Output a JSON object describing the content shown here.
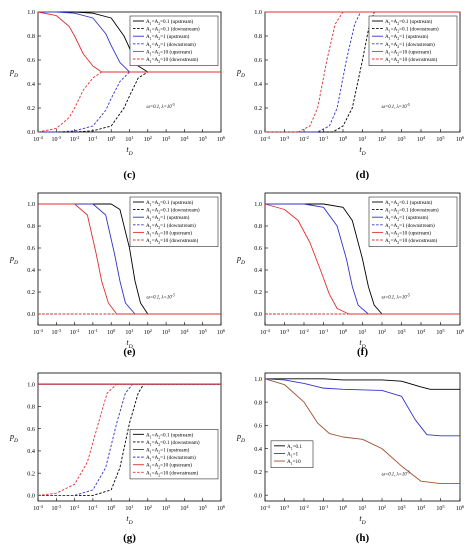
{
  "figure": {
    "panel_labels": [
      "(c)",
      "(d)",
      "(e)",
      "(f)",
      "(g)",
      "(h)"
    ]
  },
  "chart_data": [
    {
      "panel": "(c)",
      "type": "line",
      "xscale": "log",
      "x_tick_exponents": [
        -4,
        -3,
        -2,
        -1,
        0,
        1,
        2,
        3,
        4,
        5,
        6
      ],
      "xlim": [
        0.0001,
        1000000
      ],
      "ylim": [
        0,
        1
      ],
      "yticks": [
        "0.0",
        "0.2",
        "0.4",
        "0.6",
        "0.8",
        "1.0"
      ],
      "xlabel": "t_D",
      "ylabel": "p_D",
      "annotation": "ω=0.1  λ=10^-5",
      "legend_position": "top-right",
      "series": [
        {
          "name": "A1=A2=0.1 (upstream)",
          "color": "#000000",
          "dash": "solid",
          "x": [
            0.0001,
            0.01,
            0.1,
            1,
            5,
            10,
            30,
            100,
            1000000
          ],
          "y": [
            1,
            1,
            0.99,
            0.95,
            0.8,
            0.7,
            0.55,
            0.5,
            0.5
          ]
        },
        {
          "name": "A1=A2=0.1 (downstream)",
          "color": "#000000",
          "dash": "dash",
          "x": [
            0.0001,
            0.01,
            0.1,
            1,
            5,
            10,
            30,
            100,
            1000000
          ],
          "y": [
            0,
            0,
            0.01,
            0.05,
            0.2,
            0.3,
            0.45,
            0.5,
            0.5
          ]
        },
        {
          "name": "A1=A2=1 (upstream)",
          "color": "#3333cc",
          "dash": "solid",
          "x": [
            0.0001,
            0.001,
            0.01,
            0.1,
            0.5,
            1,
            3,
            10,
            1000000
          ],
          "y": [
            1,
            1,
            0.99,
            0.95,
            0.82,
            0.72,
            0.58,
            0.5,
            0.5
          ]
        },
        {
          "name": "A1=A2=1 (downstream)",
          "color": "#3333cc",
          "dash": "dash",
          "x": [
            0.0001,
            0.001,
            0.01,
            0.1,
            0.5,
            1,
            3,
            10,
            1000000
          ],
          "y": [
            0,
            0,
            0.01,
            0.05,
            0.18,
            0.28,
            0.42,
            0.5,
            0.5
          ]
        },
        {
          "name": "A1=A2=10 (upstream)",
          "color": "#e03030",
          "dash": "solid",
          "x": [
            0.0001,
            0.001,
            0.005,
            0.01,
            0.03,
            0.1,
            0.3,
            1000000
          ],
          "y": [
            1,
            0.97,
            0.88,
            0.8,
            0.65,
            0.55,
            0.5,
            0.5
          ]
        },
        {
          "name": "A1=A2=10 (downstream)",
          "color": "#e03030",
          "dash": "dash",
          "x": [
            0.0001,
            0.001,
            0.005,
            0.01,
            0.03,
            0.1,
            0.3,
            1000000
          ],
          "y": [
            0,
            0.03,
            0.12,
            0.2,
            0.35,
            0.45,
            0.5,
            0.5
          ]
        }
      ]
    },
    {
      "panel": "(d)",
      "type": "line",
      "xscale": "log",
      "x_tick_exponents": [
        -4,
        -3,
        -2,
        -1,
        0,
        1,
        2,
        3,
        4,
        5,
        6
      ],
      "xlim": [
        0.0001,
        1000000
      ],
      "ylim": [
        0,
        1
      ],
      "yticks": [
        "0.0",
        "0.2",
        "0.4",
        "0.6",
        "0.8",
        "1.0"
      ],
      "xlabel": "t_D",
      "ylabel": "p_D",
      "annotation": "ω=0.1  λ=10^-5",
      "legend_position": "top-right",
      "series": [
        {
          "name": "A1=A2=0.1 (upstream)",
          "color": "#000000",
          "dash": "solid",
          "x": [
            0.0001,
            1000000
          ],
          "y": [
            1,
            1
          ]
        },
        {
          "name": "A1=A2=0.1 (downstream)",
          "color": "#000000",
          "dash": "dash",
          "x": [
            0.0001,
            0.3,
            1,
            3,
            10,
            20,
            40,
            1000000
          ],
          "y": [
            0,
            0,
            0.05,
            0.2,
            0.6,
            0.85,
            1,
            1
          ]
        },
        {
          "name": "A1=A2=1 (upstream)",
          "color": "#3333cc",
          "dash": "solid",
          "x": [
            0.0001,
            1000000
          ],
          "y": [
            1,
            1
          ]
        },
        {
          "name": "A1=A2=1 (downstream)",
          "color": "#3333cc",
          "dash": "dash",
          "x": [
            0.0001,
            0.05,
            0.2,
            0.5,
            1.5,
            4,
            8,
            1000000
          ],
          "y": [
            0,
            0,
            0.05,
            0.2,
            0.6,
            0.9,
            1,
            1
          ]
        },
        {
          "name": "A1=A2=10 (upstream)",
          "color": "#e03030",
          "dash": "solid",
          "x": [
            0.0001,
            1000000
          ],
          "y": [
            1,
            1
          ]
        },
        {
          "name": "A1=A2=10 (downstream)",
          "color": "#e03030",
          "dash": "dash",
          "x": [
            0.0001,
            0.005,
            0.02,
            0.05,
            0.15,
            0.4,
            1,
            1000000
          ],
          "y": [
            0,
            0,
            0.05,
            0.2,
            0.6,
            0.9,
            1,
            1
          ]
        }
      ]
    },
    {
      "panel": "(e)",
      "type": "line",
      "xscale": "log",
      "x_tick_exponents": [
        -4,
        -3,
        -2,
        -1,
        0,
        1,
        2,
        3,
        4,
        5,
        6
      ],
      "xlim": [
        0.0001,
        1000000
      ],
      "ylim": [
        -0.1,
        1.1
      ],
      "yticks": [
        "0.0",
        "0.2",
        "0.4",
        "0.6",
        "0.8",
        "1.0"
      ],
      "xlabel": "t_D",
      "ylabel": "p_D",
      "annotation": "ω=0.1  λ=10^-5",
      "legend_position": "top-right",
      "series": [
        {
          "name": "A1=A2=0.1 (upstream)",
          "color": "#000000",
          "dash": "solid",
          "x": [
            0.0001,
            1,
            3,
            10,
            20,
            40,
            100,
            1000000
          ],
          "y": [
            1,
            1,
            0.95,
            0.6,
            0.3,
            0.1,
            0,
            0
          ]
        },
        {
          "name": "A1=A2=0.1 (downstream)",
          "color": "#000000",
          "dash": "dash",
          "x": [
            0.0001,
            1000000
          ],
          "y": [
            0,
            0
          ]
        },
        {
          "name": "A1=A2=1 (upstream)",
          "color": "#3333cc",
          "dash": "solid",
          "x": [
            0.0001,
            0.1,
            0.5,
            1.5,
            3,
            6,
            20,
            1000000
          ],
          "y": [
            1,
            1,
            0.9,
            0.55,
            0.3,
            0.1,
            0,
            0
          ]
        },
        {
          "name": "A1=A2=1 (downstream)",
          "color": "#3333cc",
          "dash": "dash",
          "x": [
            0.0001,
            1000000
          ],
          "y": [
            0,
            0
          ]
        },
        {
          "name": "A1=A2=10 (upstream)",
          "color": "#e03030",
          "dash": "solid",
          "x": [
            0.0001,
            0.01,
            0.05,
            0.15,
            0.3,
            0.7,
            2,
            1000000
          ],
          "y": [
            1,
            1,
            0.9,
            0.55,
            0.3,
            0.1,
            0,
            0
          ]
        },
        {
          "name": "A1=A2=10 (downstream)",
          "color": "#e03030",
          "dash": "dash",
          "x": [
            0.0001,
            1000000
          ],
          "y": [
            0,
            0
          ]
        }
      ]
    },
    {
      "panel": "(f)",
      "type": "line",
      "xscale": "log",
      "x_tick_exponents": [
        -4,
        -3,
        -2,
        -1,
        0,
        1,
        2,
        3,
        4,
        5,
        6
      ],
      "xlim": [
        0.0001,
        1000000
      ],
      "ylim": [
        -0.1,
        1.1
      ],
      "yticks": [
        "0.0",
        "0.2",
        "0.4",
        "0.6",
        "0.8",
        "1.0"
      ],
      "xlabel": "t_D",
      "ylabel": "p_D",
      "annotation": "ω=0.1  λ=10^-5",
      "legend_position": "top-right",
      "series": [
        {
          "name": "A1=A2=0.1 (upstream)",
          "color": "#000000",
          "dash": "solid",
          "x": [
            0.0001,
            0.1,
            1,
            3,
            10,
            20,
            40,
            100,
            1000000
          ],
          "y": [
            1,
            1,
            0.97,
            0.85,
            0.5,
            0.25,
            0.08,
            0,
            0
          ]
        },
        {
          "name": "A1=A2=0.1 (downstream)",
          "color": "#000000",
          "dash": "dash",
          "x": [
            0.0001,
            1000000
          ],
          "y": [
            0,
            0
          ]
        },
        {
          "name": "A1=A2=1 (upstream)",
          "color": "#3333cc",
          "dash": "solid",
          "x": [
            0.0001,
            0.01,
            0.1,
            0.5,
            1.5,
            3,
            6,
            20,
            1000000
          ],
          "y": [
            1,
            1,
            0.97,
            0.8,
            0.5,
            0.25,
            0.08,
            0,
            0
          ]
        },
        {
          "name": "A1=A2=1 (downstream)",
          "color": "#3333cc",
          "dash": "dash",
          "x": [
            0.0001,
            1000000
          ],
          "y": [
            0,
            0
          ]
        },
        {
          "name": "A1=A2=10 (upstream)",
          "color": "#e03030",
          "dash": "solid",
          "x": [
            0.0001,
            0.001,
            0.005,
            0.02,
            0.07,
            0.2,
            0.5,
            2,
            1000000
          ],
          "y": [
            1,
            0.95,
            0.85,
            0.65,
            0.4,
            0.18,
            0.05,
            0,
            0
          ]
        },
        {
          "name": "A1=A2=10 (downstream)",
          "color": "#e03030",
          "dash": "dash",
          "x": [
            0.0001,
            1000000
          ],
          "y": [
            0,
            0
          ]
        }
      ]
    },
    {
      "panel": "(g)",
      "type": "line",
      "xscale": "log",
      "x_tick_exponents": [
        -4,
        -3,
        -2,
        -1,
        0,
        1,
        2,
        3,
        4,
        5,
        6
      ],
      "xlim": [
        0.0001,
        1000000
      ],
      "ylim": [
        -0.05,
        1.1
      ],
      "yticks": [
        "0.0",
        "0.2",
        "0.4",
        "0.6",
        "0.8",
        "1.0"
      ],
      "xlabel": "t_D",
      "ylabel": "p_D",
      "annotation": "ω=0.1  λ=10^-5",
      "legend_position": "bottom-right",
      "series": [
        {
          "name": "A1=A2=0.1 (upstream)",
          "color": "#000000",
          "dash": "solid",
          "x": [
            0.0001,
            1000000
          ],
          "y": [
            1,
            1
          ]
        },
        {
          "name": "A1=A2=0.1 (downstream)",
          "color": "#000000",
          "dash": "dash",
          "x": [
            0.0001,
            0.1,
            1,
            3,
            10,
            30,
            60,
            1000000
          ],
          "y": [
            0,
            0,
            0.05,
            0.25,
            0.65,
            0.92,
            1,
            1
          ]
        },
        {
          "name": "A1=A2=1 (upstream)",
          "color": "#3333cc",
          "dash": "solid",
          "x": [
            0.0001,
            1000000
          ],
          "y": [
            1,
            1
          ]
        },
        {
          "name": "A1=A2=1 (downstream)",
          "color": "#3333cc",
          "dash": "dash",
          "x": [
            0.0001,
            0.01,
            0.1,
            0.5,
            2,
            6,
            15,
            1000000
          ],
          "y": [
            0,
            0,
            0.05,
            0.25,
            0.65,
            0.92,
            1,
            1
          ]
        },
        {
          "name": "A1=A2=10 (upstream)",
          "color": "#e03030",
          "dash": "solid",
          "x": [
            0.0001,
            1000000
          ],
          "y": [
            1,
            1
          ]
        },
        {
          "name": "A1=A2=10 (downstream)",
          "color": "#e03030",
          "dash": "dash",
          "x": [
            0.0001,
            0.001,
            0.01,
            0.05,
            0.2,
            0.6,
            2,
            1000000
          ],
          "y": [
            0,
            0.02,
            0.1,
            0.3,
            0.65,
            0.92,
            1,
            1
          ]
        }
      ]
    },
    {
      "panel": "(h)",
      "type": "line",
      "xscale": "log",
      "x_tick_exponents": [
        -4,
        -3,
        -2,
        -1,
        0,
        1,
        2,
        3,
        4,
        5,
        6
      ],
      "xlim": [
        0.0001,
        1000000
      ],
      "ylim": [
        -0.05,
        1.05
      ],
      "yticks": [
        "0.0",
        "0.2",
        "0.4",
        "0.6",
        "0.8",
        "1.0"
      ],
      "xlabel": "t_D",
      "ylabel": "p_D",
      "annotation": "ω=0.1  λ=10^-5",
      "legend_position": "bottom-left",
      "series": [
        {
          "name": "A1=0.1",
          "color": "#000000",
          "dash": "solid",
          "x": [
            0.0001,
            0.1,
            1,
            100,
            1000,
            10000,
            30000,
            1000000
          ],
          "y": [
            1,
            1,
            0.99,
            0.99,
            0.98,
            0.93,
            0.91,
            0.91
          ]
        },
        {
          "name": "A1=1",
          "color": "#3333cc",
          "dash": "solid",
          "x": [
            0.0001,
            0.001,
            0.01,
            0.1,
            1,
            100,
            1000,
            5000,
            20000,
            100000,
            1000000
          ],
          "y": [
            1,
            0.99,
            0.96,
            0.92,
            0.91,
            0.9,
            0.85,
            0.65,
            0.52,
            0.51,
            0.51
          ]
        },
        {
          "name": "A1=10",
          "color": "#a0522d",
          "dash": "solid",
          "x": [
            0.0001,
            0.001,
            0.01,
            0.05,
            0.2,
            1,
            10,
            100,
            1000,
            10000,
            100000,
            1000000
          ],
          "y": [
            1,
            0.95,
            0.8,
            0.62,
            0.53,
            0.5,
            0.48,
            0.4,
            0.25,
            0.12,
            0.1,
            0.1
          ]
        }
      ]
    }
  ]
}
